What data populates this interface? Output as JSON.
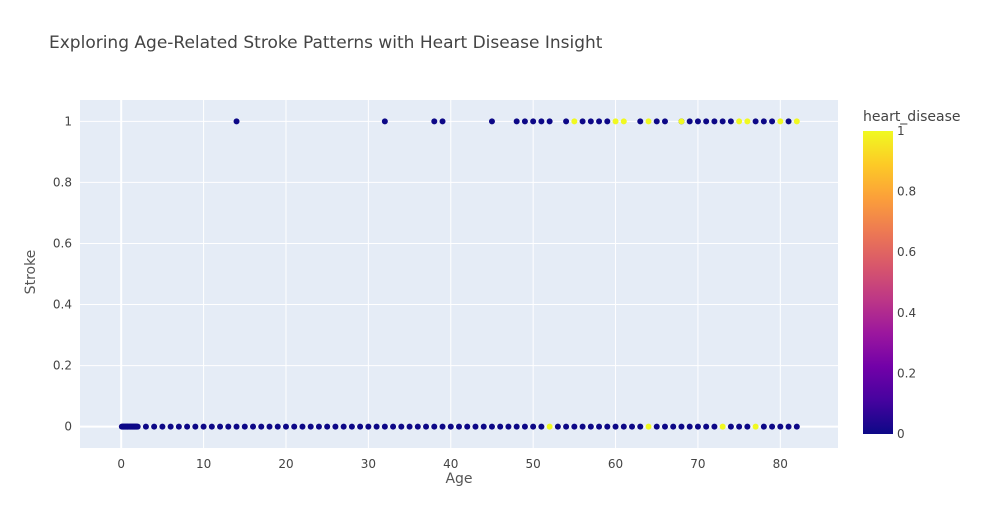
{
  "chart_data": {
    "type": "scatter",
    "title": "Exploring Age-Related Stroke Patterns with Heart Disease Insight",
    "xlabel": "Age",
    "ylabel": "Stroke",
    "colorbar_title": "heart_disease",
    "xlim": [
      -5,
      87
    ],
    "ylim": [
      -0.07,
      1.07
    ],
    "xticks": [
      0,
      10,
      20,
      30,
      40,
      50,
      60,
      70,
      80
    ],
    "yticks": [
      0,
      0.2,
      0.4,
      0.6,
      0.8,
      1
    ],
    "colorbar_ticks": [
      0,
      0.2,
      0.4,
      0.6,
      0.8,
      1
    ],
    "grid": true,
    "colorscale": [
      "#0d0887",
      "#46039f",
      "#7201a8",
      "#9c179e",
      "#bd3786",
      "#d8576b",
      "#ed7953",
      "#fb9f3a",
      "#fdca26",
      "#f0f921"
    ],
    "series": [
      {
        "y": 0,
        "heart_disease": 0,
        "x": [
          0.08,
          0.16,
          0.24,
          0.32,
          0.4,
          0.48,
          0.56,
          0.64,
          0.72,
          0.8,
          0.88,
          1.0,
          1.08,
          1.16,
          1.24,
          1.32,
          1.4,
          1.48,
          1.56,
          1.64,
          1.72,
          1.8,
          1.88,
          2,
          3,
          4,
          5,
          6,
          7,
          8,
          9,
          10,
          11,
          12,
          13,
          14,
          15,
          16,
          17,
          18,
          19,
          20,
          21,
          22,
          23,
          24,
          25,
          26,
          27,
          28,
          29,
          30,
          31,
          32,
          33,
          34,
          35,
          36,
          37,
          38,
          39,
          40,
          41,
          42,
          43,
          44,
          45,
          46,
          47,
          48,
          49,
          50,
          51,
          53,
          54,
          55,
          56,
          57,
          58,
          59,
          60,
          61,
          62,
          63,
          65,
          66,
          67,
          68,
          69,
          70,
          71,
          72,
          74,
          75,
          76,
          78,
          79,
          80,
          81,
          82
        ]
      },
      {
        "y": 0,
        "heart_disease": 1,
        "x": [
          52,
          64,
          73,
          77
        ]
      },
      {
        "y": 1,
        "heart_disease": 0,
        "x": [
          14,
          32,
          38,
          39,
          45,
          48,
          49,
          50,
          51,
          52,
          54,
          56,
          57,
          58,
          59,
          63,
          65,
          66,
          68,
          69,
          70,
          71,
          72,
          73,
          74,
          77,
          78,
          79,
          81
        ]
      },
      {
        "y": 1,
        "heart_disease": 1,
        "x": [
          55,
          60,
          61,
          64,
          68,
          75,
          76,
          80,
          82
        ]
      }
    ]
  }
}
